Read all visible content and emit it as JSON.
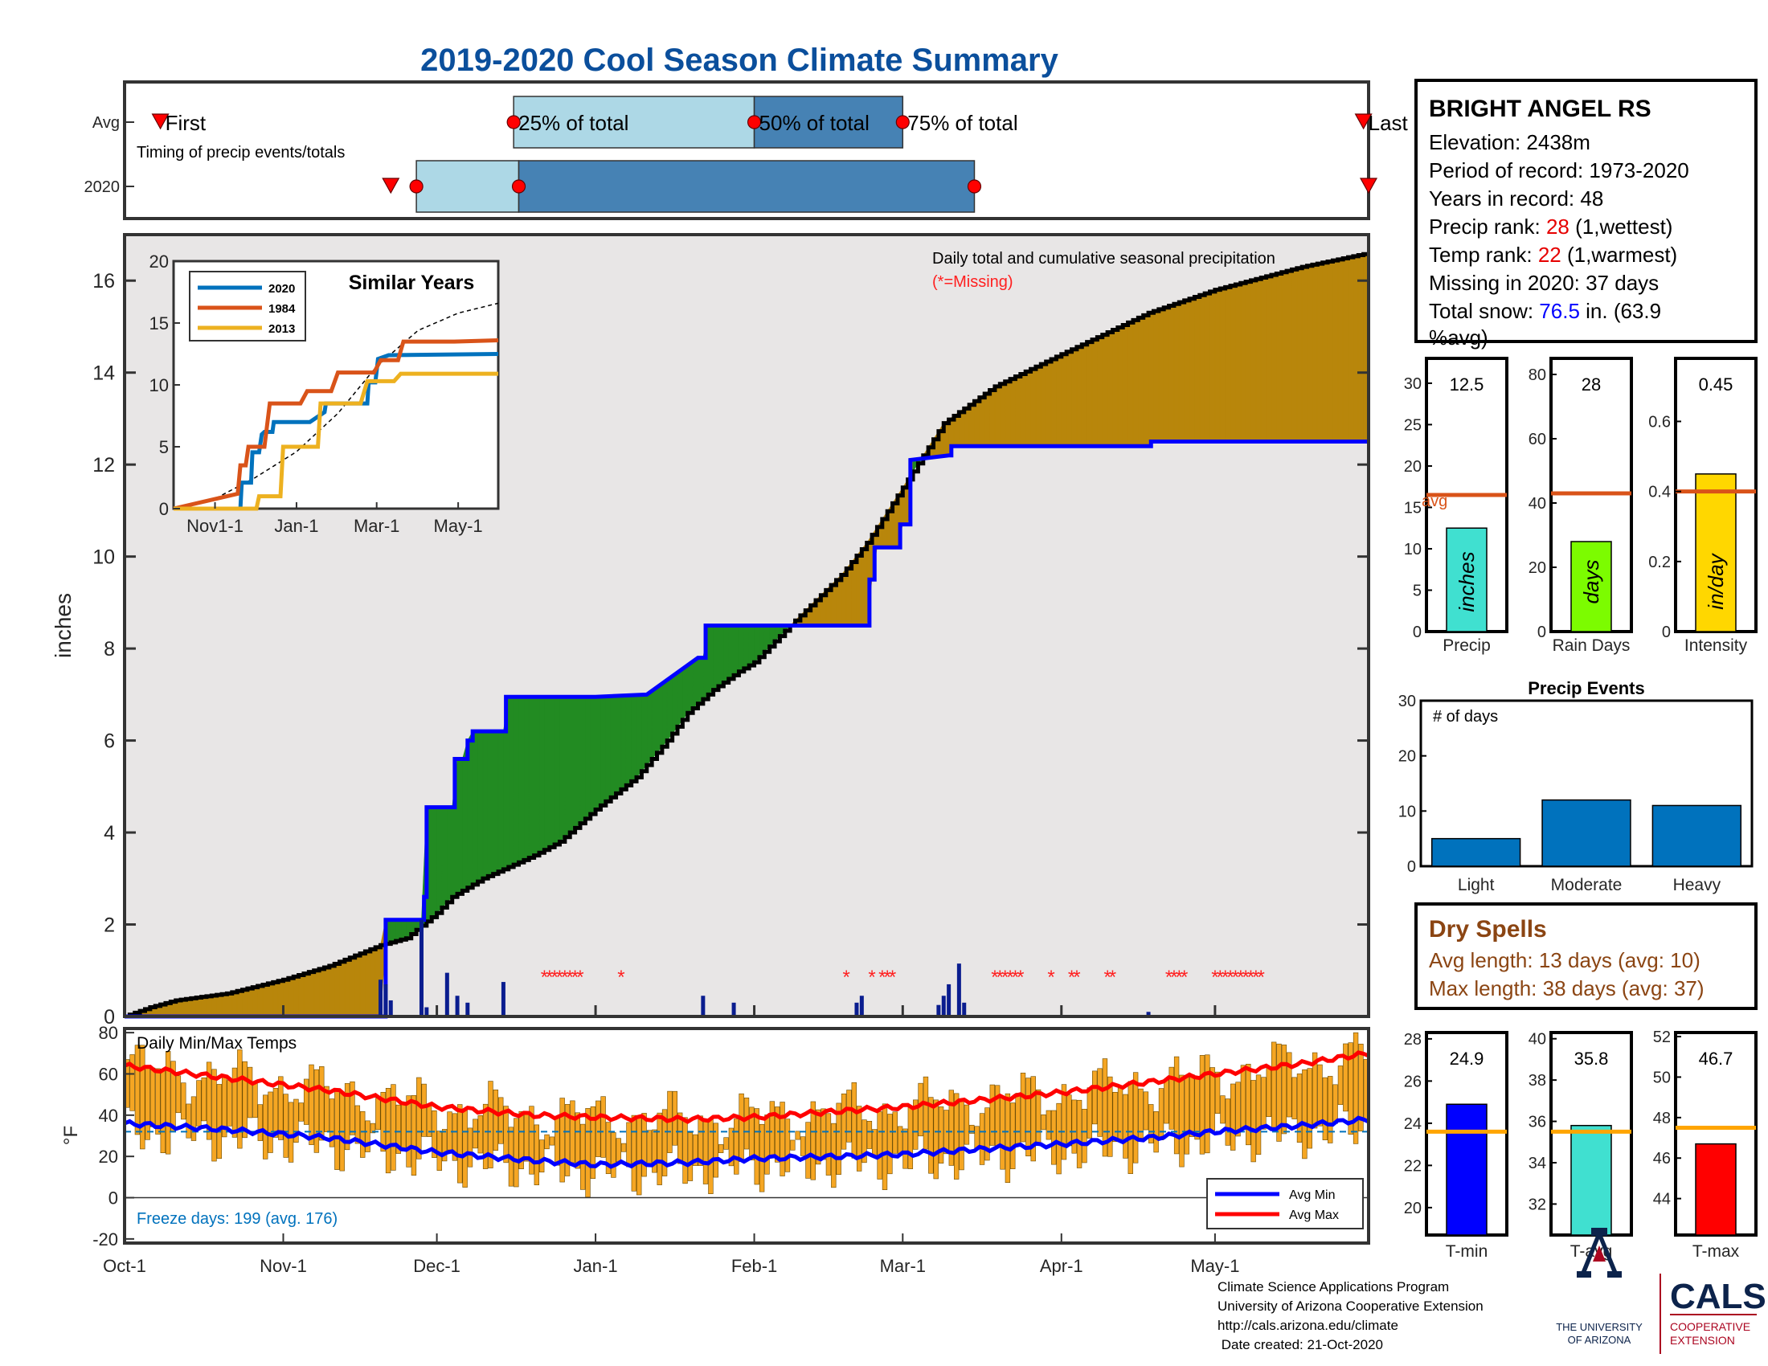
{
  "page": {
    "title": "2019-2020 Cool Season Climate Summary",
    "footer_lines": [
      "Climate Science Applications Program",
      "University of Arizona Cooperative Extension",
      "http://cals.arizona.edu/climate",
      " Date created: 21-Oct-2020"
    ],
    "logo_ua_lines": [
      "THE UNIVERSITY",
      "OF ARIZONA"
    ],
    "logo_cals": "CALS",
    "logo_cals_lines": [
      "COOPERATIVE",
      "EXTENSION"
    ]
  },
  "station": {
    "name": "BRIGHT ANGEL RS",
    "elevation": "Elevation: 2438m",
    "period": "Period of record: 1973-2020",
    "years": "Years in record: 48",
    "precip_rank_label": "Precip rank: ",
    "precip_rank_value": "28",
    "precip_rank_suffix": " (1,wettest)",
    "temp_rank_label": "Temp rank: ",
    "temp_rank_value": "22",
    "temp_rank_suffix": " (1,warmest)",
    "missing": "Missing in 2020: 37 days",
    "snow_label": "Total snow: ",
    "snow_value": "76.5",
    "snow_suffix": " in. (63.9",
    "snow_suffix2": "%avg)"
  },
  "colors": {
    "title": "#0b4f9c",
    "brown_fill": "#b8860b",
    "green_fill": "#228b22",
    "avg_line": "#0000ff",
    "light_blue": "#add8e6",
    "mid_blue": "#4682b4",
    "orange_line": "#d95319",
    "rank_red": "#e60000",
    "snow_blue": "#0000ff",
    "dry_brown": "#8b4513",
    "bar_blue": "#0072bd",
    "ua_red": "#ab0520",
    "ua_navy": "#0c234b"
  },
  "chart_data": [
    {
      "id": "timing",
      "type": "table",
      "row_labels": [
        "Avg",
        "2020"
      ],
      "note": "Timing of precip events/totals",
      "labels": [
        "First",
        "25% of total",
        "50% of total",
        "75% of total",
        "Last"
      ],
      "x_range": [
        "Oct-1",
        "May-31"
      ],
      "avg": {
        "first": "Oct-8",
        "p25": "Dec-16",
        "p50": "Feb-1",
        "p75": "Mar-1",
        "last": "May-30"
      },
      "y2020": {
        "first": "Nov-22",
        "p25": "Nov-27",
        "p50": "Dec-17",
        "p75": "Mar-15",
        "last": "May-31"
      }
    },
    {
      "id": "cumulative",
      "type": "area",
      "title": "Daily total and cumulative seasonal precipitation",
      "subtitle": "(*=Missing)",
      "ylabel": "inches",
      "ylim": [
        0,
        17
      ],
      "yticks": [
        0,
        2,
        4,
        6,
        8,
        10,
        12,
        14,
        16
      ],
      "x_ticks": [
        "Oct-1",
        "Nov-1",
        "Dec-1",
        "Jan-1",
        "Feb-1",
        "Mar-1",
        "Apr-1",
        "May-1"
      ],
      "x_tick_days": [
        0,
        31,
        61,
        92,
        123,
        152,
        183,
        213
      ],
      "n_days": 243,
      "avg_cumulative": [
        [
          0,
          0
        ],
        [
          5,
          0.2
        ],
        [
          10,
          0.35
        ],
        [
          20,
          0.5
        ],
        [
          31,
          0.8
        ],
        [
          40,
          1.1
        ],
        [
          50,
          1.55
        ],
        [
          55,
          1.7
        ],
        [
          61,
          2.25
        ],
        [
          64,
          2.6
        ],
        [
          70,
          3.0
        ],
        [
          80,
          3.5
        ],
        [
          85,
          3.8
        ],
        [
          92,
          4.5
        ],
        [
          100,
          5.2
        ],
        [
          106,
          6.0
        ],
        [
          110,
          6.6
        ],
        [
          115,
          7.1
        ],
        [
          120,
          7.5
        ],
        [
          123,
          7.7
        ],
        [
          130,
          8.5
        ],
        [
          140,
          9.6
        ],
        [
          145,
          10.3
        ],
        [
          152,
          11.5
        ],
        [
          160,
          12.9
        ],
        [
          170,
          13.7
        ],
        [
          183,
          14.4
        ],
        [
          200,
          15.3
        ],
        [
          213,
          15.8
        ],
        [
          230,
          16.3
        ],
        [
          243,
          16.6
        ]
      ],
      "y2020_cumulative": [
        [
          0,
          0
        ],
        [
          50,
          0
        ],
        [
          51,
          2.1
        ],
        [
          58,
          2.1
        ],
        [
          58.5,
          2.6
        ],
        [
          59,
          4.55
        ],
        [
          64,
          4.55
        ],
        [
          64.5,
          5.6
        ],
        [
          66,
          5.6
        ],
        [
          67,
          6.0
        ],
        [
          68,
          6.2
        ],
        [
          74,
          6.2
        ],
        [
          74.5,
          6.95
        ],
        [
          92,
          6.95
        ],
        [
          102,
          7.0
        ],
        [
          112,
          7.8
        ],
        [
          113,
          7.8
        ],
        [
          113.5,
          8.5
        ],
        [
          145,
          8.5
        ],
        [
          145.5,
          9.5
        ],
        [
          146,
          9.5
        ],
        [
          146.5,
          10.2
        ],
        [
          151,
          10.2
        ],
        [
          151.5,
          10.7
        ],
        [
          153,
          10.7
        ],
        [
          153.5,
          12.1
        ],
        [
          161,
          12.2
        ],
        [
          161.5,
          12.4
        ],
        [
          200,
          12.4
        ],
        [
          200.5,
          12.5
        ],
        [
          243,
          12.5
        ]
      ],
      "daily_bars": [
        [
          50,
          0.8
        ],
        [
          51,
          0.7
        ],
        [
          52,
          0.35
        ],
        [
          58,
          2.1
        ],
        [
          59,
          0.2
        ],
        [
          63,
          0.95
        ],
        [
          65,
          0.45
        ],
        [
          67,
          0.3
        ],
        [
          74,
          0.75
        ],
        [
          113,
          0.45
        ],
        [
          119,
          0.3
        ],
        [
          143,
          0.3
        ],
        [
          144,
          0.45
        ],
        [
          159,
          0.25
        ],
        [
          160,
          0.45
        ],
        [
          161,
          0.7
        ],
        [
          163,
          1.15
        ],
        [
          164,
          0.3
        ],
        [
          200,
          0.1
        ]
      ],
      "missing_days": [
        82,
        83,
        84,
        85,
        86,
        87,
        88,
        89,
        97,
        141,
        146,
        148,
        149,
        150,
        170,
        171,
        172,
        173,
        174,
        175,
        181,
        185,
        186,
        192,
        193,
        204,
        205,
        206,
        207,
        213,
        214,
        215,
        216,
        217,
        218,
        219,
        220,
        221,
        222
      ]
    },
    {
      "id": "similar_years",
      "type": "line",
      "title": "Similar Years",
      "ylim": [
        0,
        20
      ],
      "yticks": [
        0,
        5,
        10,
        15,
        20
      ],
      "x_ticks": [
        "Nov1-1",
        "Jan-1",
        "Mar-1",
        "May-1"
      ],
      "x_tick_days": [
        31,
        92,
        152,
        213
      ],
      "series": [
        {
          "name": "2020",
          "color": "#0072bd",
          "points": [
            [
              0,
              0
            ],
            [
              50,
              0
            ],
            [
              51,
              2.1
            ],
            [
              58,
              2.1
            ],
            [
              59,
              4.55
            ],
            [
              64,
              4.55
            ],
            [
              66,
              6.0
            ],
            [
              68,
              6.2
            ],
            [
              74,
              6.2
            ],
            [
              75,
              7.0
            ],
            [
              102,
              7.0
            ],
            [
              113,
              7.8
            ],
            [
              114,
              8.5
            ],
            [
              145,
              8.5
            ],
            [
              146,
              10.2
            ],
            [
              151,
              10.2
            ],
            [
              153,
              12.1
            ],
            [
              161,
              12.4
            ],
            [
              243,
              12.5
            ]
          ]
        },
        {
          "name": "1984",
          "color": "#d95319",
          "points": [
            [
              0,
              0
            ],
            [
              40,
              1.0
            ],
            [
              48,
              1.2
            ],
            [
              50,
              3.5
            ],
            [
              54,
              3.5
            ],
            [
              56,
              5.0
            ],
            [
              68,
              5.0
            ],
            [
              72,
              8.5
            ],
            [
              95,
              8.5
            ],
            [
              100,
              9.5
            ],
            [
              118,
              9.5
            ],
            [
              123,
              11.0
            ],
            [
              150,
              11.0
            ],
            [
              155,
              12.0
            ],
            [
              168,
              12.0
            ],
            [
              172,
              13.5
            ],
            [
              210,
              13.5
            ],
            [
              243,
              13.6
            ]
          ]
        },
        {
          "name": "2013",
          "color": "#edb120",
          "points": [
            [
              0,
              0
            ],
            [
              62,
              0
            ],
            [
              64,
              1.0
            ],
            [
              80,
              1.0
            ],
            [
              82,
              5.0
            ],
            [
              108,
              5.0
            ],
            [
              110,
              8.5
            ],
            [
              140,
              8.5
            ],
            [
              145,
              10.3
            ],
            [
              165,
              10.3
            ],
            [
              170,
              10.9
            ],
            [
              243,
              10.9
            ]
          ]
        }
      ],
      "avg_series": [
        [
          0,
          0
        ],
        [
          31,
          0.8
        ],
        [
          61,
          2.5
        ],
        [
          92,
          4.6
        ],
        [
          123,
          7.7
        ],
        [
          152,
          11.5
        ],
        [
          183,
          14.4
        ],
        [
          213,
          15.8
        ],
        [
          243,
          16.6
        ]
      ]
    },
    {
      "id": "precip_summary",
      "type": "bar",
      "panels": [
        {
          "label": "Precip",
          "unit": "inches",
          "value": 12.5,
          "value_text": "12.5",
          "avg": 16.5,
          "avg_label": "avg",
          "ylim": [
            0,
            33
          ],
          "yticks": [
            0,
            5,
            10,
            15,
            20,
            25,
            30
          ],
          "color": "#40e0d0"
        },
        {
          "label": "Rain Days",
          "unit": "days",
          "value": 28,
          "value_text": "28",
          "avg": 43,
          "ylim": [
            0,
            85
          ],
          "yticks": [
            0,
            20,
            40,
            60,
            80
          ],
          "color": "#7cfc00"
        },
        {
          "label": "Intensity",
          "unit": "in/day",
          "value": 0.45,
          "value_text": "0.45",
          "avg": 0.4,
          "ylim": [
            0,
            0.78
          ],
          "yticks": [
            0,
            0.2,
            0.4,
            0.6
          ],
          "ytick_labels": [
            "0",
            "0.2",
            "0.4",
            "0.6"
          ],
          "color": "#ffd700"
        }
      ]
    },
    {
      "id": "precip_events",
      "type": "bar",
      "title": "Precip Events",
      "ylabel": "# of days",
      "categories": [
        "Light",
        "Moderate",
        "Heavy"
      ],
      "values": [
        5,
        12,
        11
      ],
      "ylim": [
        0,
        30
      ],
      "yticks": [
        0,
        10,
        20,
        30
      ]
    },
    {
      "id": "temps",
      "type": "bar",
      "title": "Daily Min/Max Temps",
      "ylabel": "°F",
      "ylim": [
        -22,
        82
      ],
      "yticks": [
        -20,
        0,
        20,
        40,
        60,
        80
      ],
      "freeze_text": "Freeze days: 199 (avg. 176)",
      "legend": [
        "Avg Min",
        "Avg Max"
      ],
      "freeze_line": 32,
      "avg_min": [
        [
          0,
          36
        ],
        [
          20,
          33
        ],
        [
          40,
          29
        ],
        [
          61,
          22
        ],
        [
          80,
          18
        ],
        [
          92,
          16
        ],
        [
          110,
          17
        ],
        [
          123,
          19
        ],
        [
          140,
          20
        ],
        [
          152,
          21
        ],
        [
          170,
          24
        ],
        [
          183,
          26
        ],
        [
          200,
          29
        ],
        [
          213,
          32
        ],
        [
          230,
          35
        ],
        [
          243,
          38
        ]
      ],
      "avg_max": [
        [
          0,
          64
        ],
        [
          20,
          58
        ],
        [
          40,
          52
        ],
        [
          61,
          44
        ],
        [
          80,
          40
        ],
        [
          92,
          39
        ],
        [
          110,
          38
        ],
        [
          123,
          39
        ],
        [
          140,
          42
        ],
        [
          152,
          44
        ],
        [
          170,
          48
        ],
        [
          183,
          51
        ],
        [
          200,
          56
        ],
        [
          213,
          60
        ],
        [
          230,
          65
        ],
        [
          243,
          70
        ]
      ]
    },
    {
      "id": "temp_summary",
      "type": "bar",
      "panels": [
        {
          "label": "T-min",
          "value": 24.9,
          "value_text": "24.9",
          "avg": 23.6,
          "ylim": [
            18.7,
            28.3
          ],
          "yticks": [
            20,
            22,
            24,
            26,
            28
          ],
          "color": "#0000ff"
        },
        {
          "label": "T-avg",
          "value": 35.8,
          "value_text": "35.8",
          "avg": 35.5,
          "ylim": [
            30.5,
            40.3
          ],
          "yticks": [
            32,
            34,
            36,
            38,
            40
          ],
          "color": "#40e0d0"
        },
        {
          "label": "T-max",
          "value": 46.7,
          "value_text": "46.7",
          "avg": 47.5,
          "ylim": [
            42.2,
            52.2
          ],
          "yticks": [
            44,
            46,
            48,
            50,
            52
          ],
          "color": "#ff0000"
        }
      ]
    }
  ],
  "dry_spells": {
    "title": "Dry Spells",
    "avg_length": "Avg length: 13 days (avg: 10)",
    "max_length": "Max length: 38 days (avg: 37)"
  }
}
